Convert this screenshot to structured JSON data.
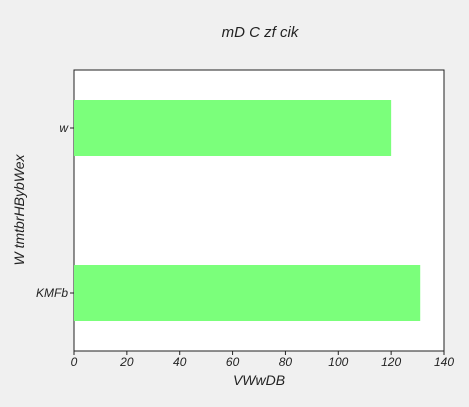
{
  "chart_data": {
    "type": "bar",
    "orientation": "horizontal",
    "title": "mD C zf cik",
    "xlabel": "VWwDB",
    "ylabel": "W tmtbrHBybWex",
    "categories": [
      "w",
      "KMFb"
    ],
    "values": [
      120,
      131
    ],
    "xlim": [
      0,
      140
    ],
    "xticks": [
      0,
      20,
      40,
      60,
      80,
      100,
      120,
      140
    ],
    "grid": false,
    "legend": "none",
    "bar_color": "#7bff7b",
    "background_color": "#f0f0f0",
    "plot_background_color": "#ffffff"
  }
}
